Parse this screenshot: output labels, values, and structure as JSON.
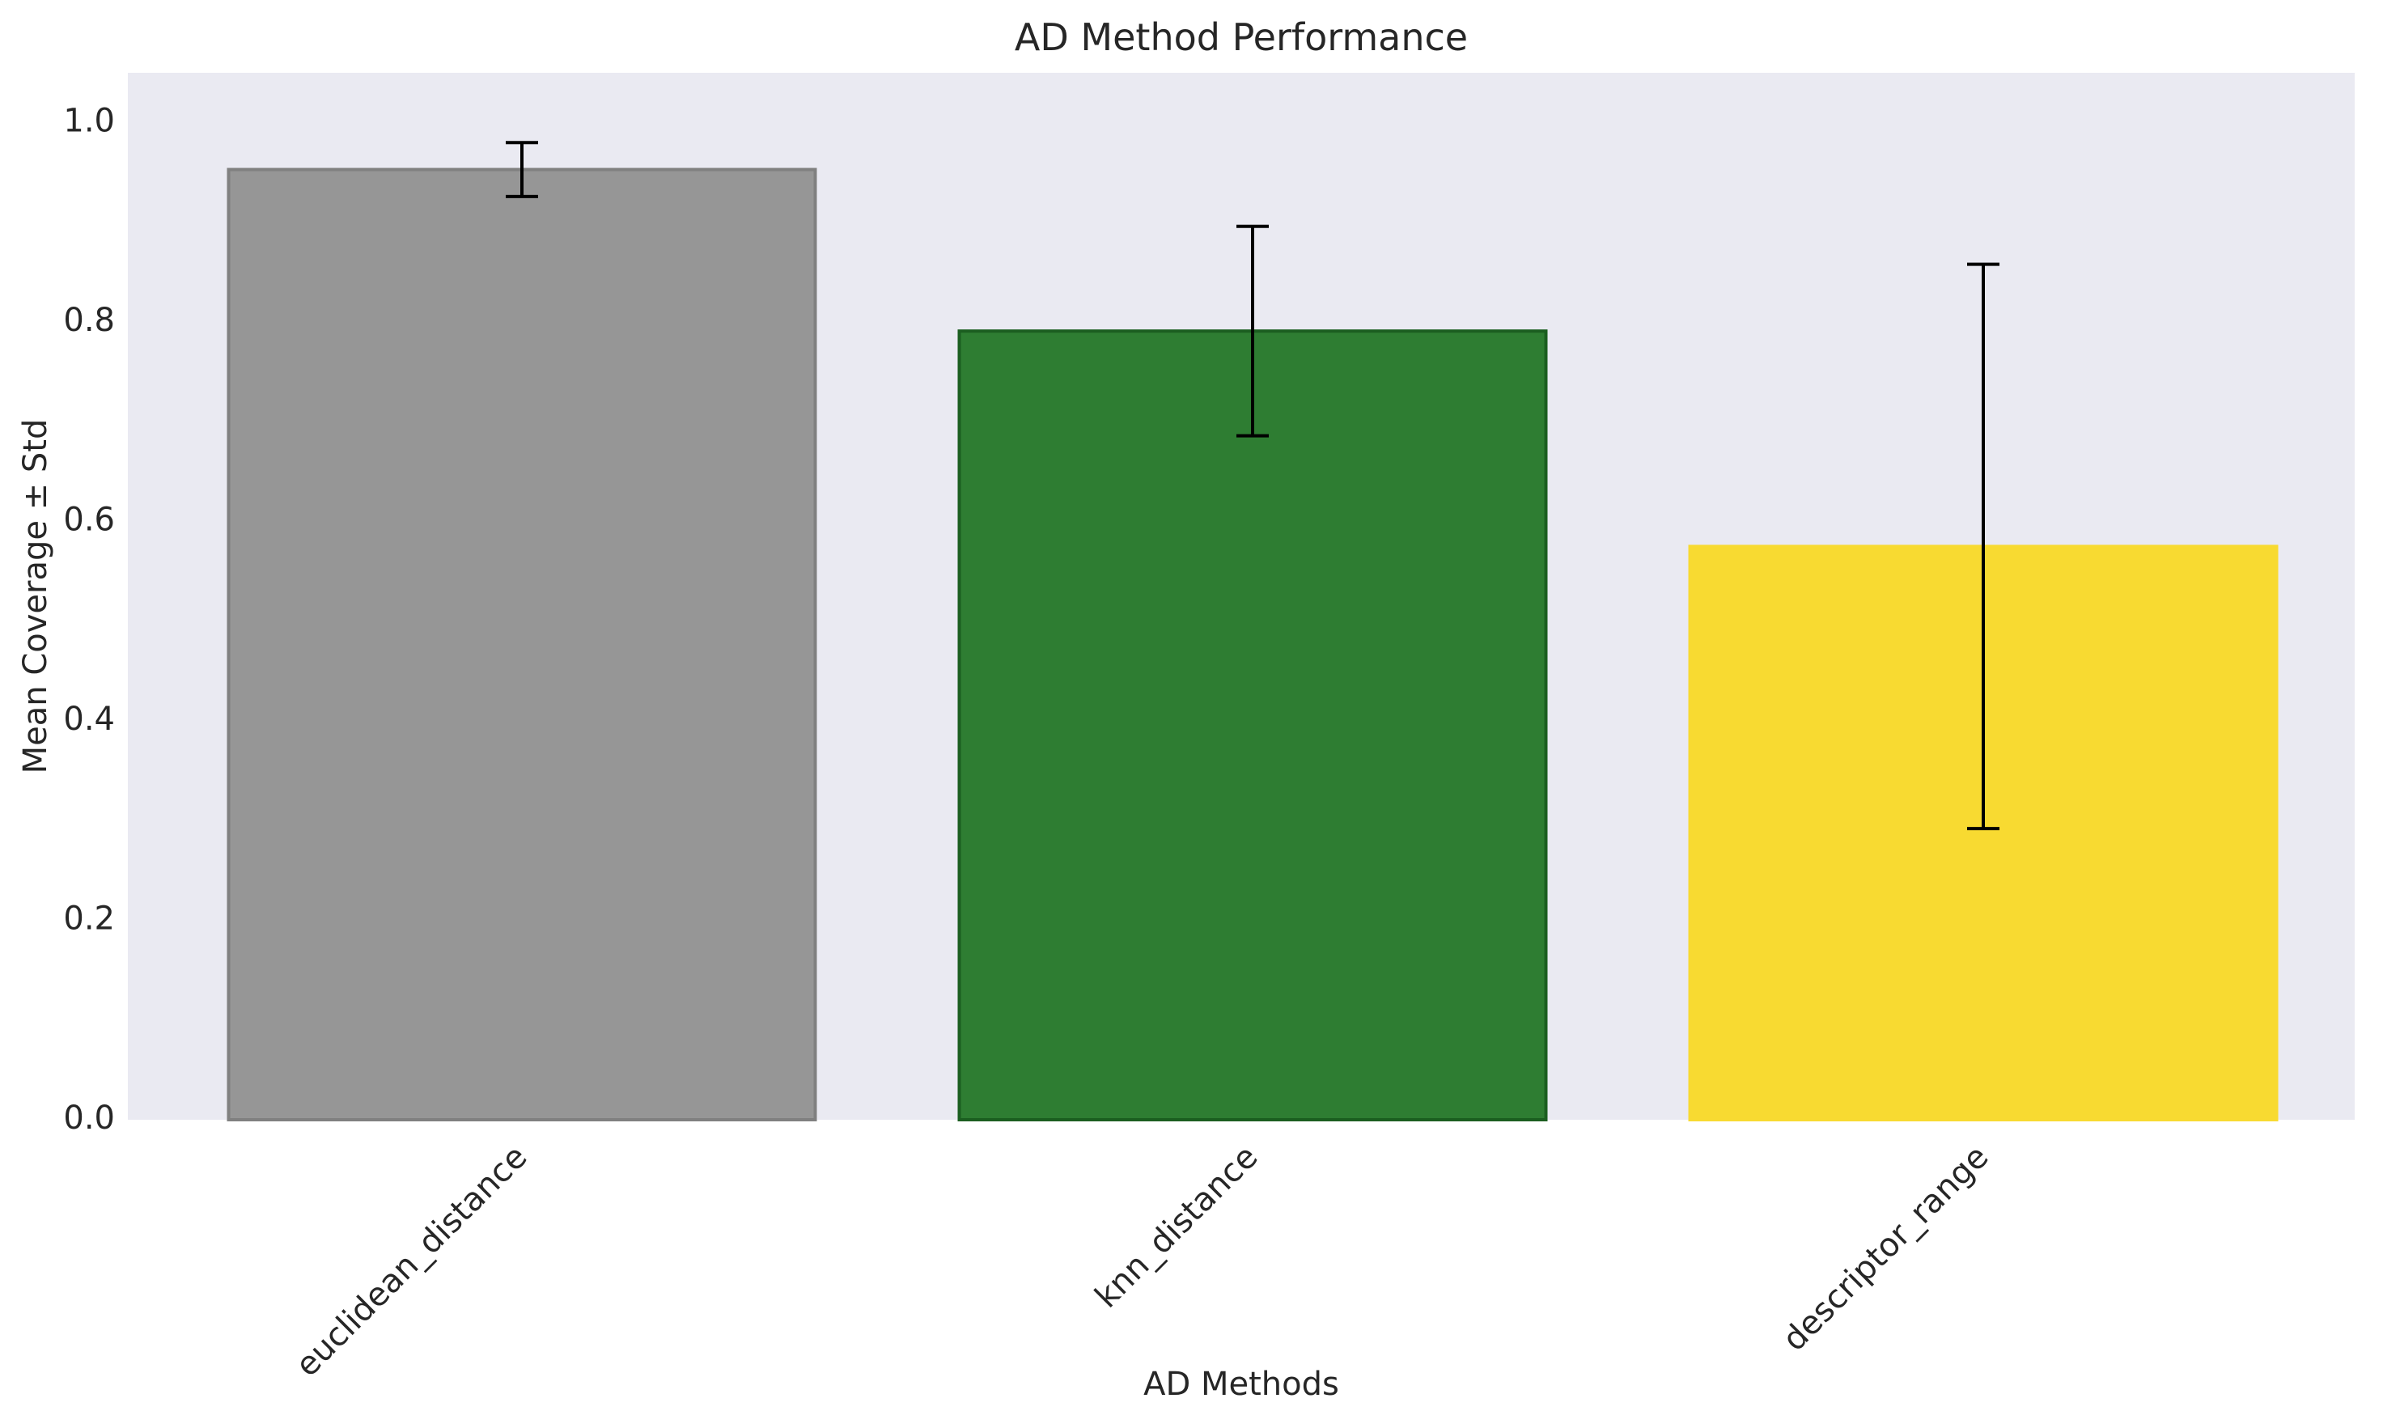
{
  "chart_data": {
    "type": "bar",
    "title": "AD Method Performance",
    "xlabel": "AD Methods",
    "ylabel": "Mean Coverage ± Std",
    "categories": [
      "euclidean_distance",
      "knn_distance",
      "descriptor_range"
    ],
    "values": [
      0.953,
      0.791,
      0.575
    ],
    "errors": [
      0.027,
      0.105,
      0.283
    ],
    "colors": [
      "#969696",
      "#2e7d32",
      "#f8da31"
    ],
    "edge_colors": [
      "#808080",
      "#1b5e20",
      "#f8da31"
    ],
    "ylim": [
      0,
      1.05
    ],
    "yticks": [
      0.0,
      0.2,
      0.4,
      0.6,
      0.8,
      1.0
    ],
    "ytick_labels": [
      "0.0",
      "0.2",
      "0.4",
      "0.6",
      "0.8",
      "1.0"
    ],
    "grid": false,
    "plot_background": "#eaeaf2",
    "error_bar_color": "#000000"
  }
}
